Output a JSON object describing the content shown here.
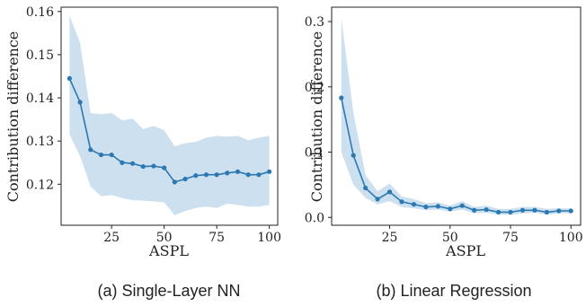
{
  "chart_data": [
    {
      "type": "line",
      "caption": "(a) Single-Layer NN",
      "xlabel": "ASPL",
      "ylabel": "Contribution difference",
      "xlim": [
        1,
        104
      ],
      "ylim": [
        0.1105,
        0.161
      ],
      "xticks": [
        25,
        50,
        75,
        100
      ],
      "yticks": [
        0.12,
        0.13,
        0.14,
        0.15,
        0.16
      ],
      "ytick_labels": [
        "0.12",
        "0.13",
        "0.14",
        "0.15",
        "0.16"
      ],
      "x": [
        5,
        10,
        15,
        20,
        25,
        30,
        35,
        40,
        45,
        50,
        55,
        60,
        65,
        70,
        75,
        80,
        85,
        90,
        95,
        100
      ],
      "y": [
        0.1445,
        0.139,
        0.128,
        0.1268,
        0.1268,
        0.125,
        0.1248,
        0.1241,
        0.1242,
        0.1238,
        0.1205,
        0.1212,
        0.122,
        0.1222,
        0.1222,
        0.1226,
        0.1229,
        0.1222,
        0.1222,
        0.1229
      ],
      "lower": [
        0.1315,
        0.1265,
        0.1195,
        0.1172,
        0.1175,
        0.1168,
        0.1163,
        0.1162,
        0.116,
        0.1158,
        0.1128,
        0.1138,
        0.1145,
        0.1148,
        0.1145,
        0.1155,
        0.1152,
        0.1148,
        0.1148,
        0.1152
      ],
      "upper": [
        0.159,
        0.1528,
        0.1365,
        0.1362,
        0.1365,
        0.1348,
        0.1352,
        0.1328,
        0.1335,
        0.1325,
        0.1288,
        0.1295,
        0.1298,
        0.1308,
        0.1312,
        0.131,
        0.1312,
        0.1302,
        0.1308,
        0.1312
      ],
      "grid": false,
      "color": "#2b78b2",
      "band_color": "#bcd6ea"
    },
    {
      "type": "line",
      "caption": "(b) Linear Regression",
      "xlabel": "ASPL",
      "ylabel": "Contribution difference",
      "xlim": [
        1,
        104
      ],
      "ylim": [
        -0.012,
        0.322
      ],
      "xticks": [
        25,
        50,
        75,
        100
      ],
      "yticks": [
        0.0,
        0.1,
        0.2,
        0.3
      ],
      "ytick_labels": [
        "0.0",
        "0.1",
        "0.2",
        "0.3"
      ],
      "x": [
        5,
        10,
        15,
        20,
        25,
        30,
        35,
        40,
        45,
        50,
        55,
        60,
        65,
        70,
        75,
        80,
        85,
        90,
        95,
        100
      ],
      "y": [
        0.183,
        0.095,
        0.045,
        0.028,
        0.039,
        0.024,
        0.02,
        0.016,
        0.017,
        0.013,
        0.018,
        0.011,
        0.012,
        0.008,
        0.008,
        0.011,
        0.011,
        0.008,
        0.01,
        0.01
      ],
      "lower": [
        0.1,
        0.05,
        0.03,
        0.02,
        0.025,
        0.016,
        0.014,
        0.011,
        0.012,
        0.009,
        0.012,
        0.006,
        0.007,
        0.004,
        0.004,
        0.006,
        0.007,
        0.004,
        0.006,
        0.006
      ],
      "upper": [
        0.305,
        0.16,
        0.065,
        0.04,
        0.052,
        0.032,
        0.028,
        0.022,
        0.023,
        0.018,
        0.025,
        0.016,
        0.018,
        0.013,
        0.013,
        0.016,
        0.016,
        0.013,
        0.014,
        0.014
      ],
      "grid": false,
      "color": "#2b78b2",
      "band_color": "#bcd6ea"
    }
  ]
}
